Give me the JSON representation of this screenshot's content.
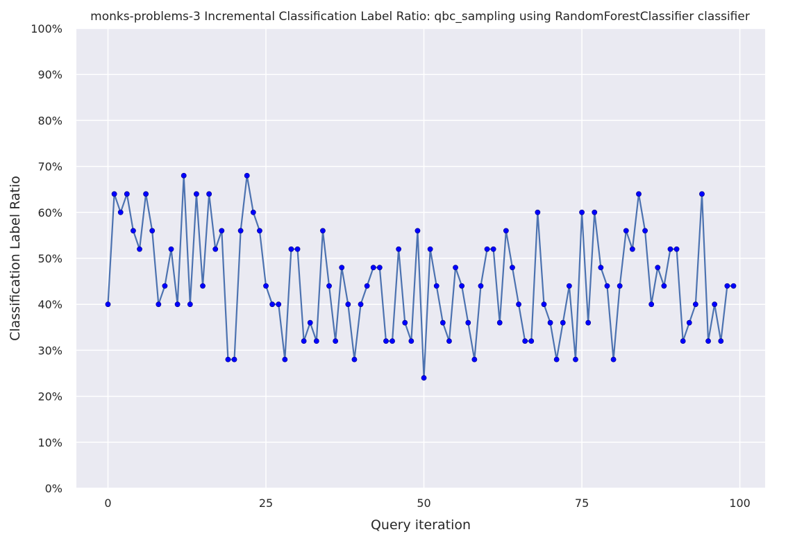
{
  "chart_data": {
    "type": "line",
    "title": "monks-problems-3 Incremental Classification Label Ratio: qbc_sampling using RandomForestClassifier classifier",
    "xlabel": "Query iteration",
    "ylabel": "Classification Label Ratio",
    "xlim": [
      -5,
      104
    ],
    "ylim": [
      0,
      1
    ],
    "xticks": [
      0,
      25,
      50,
      75,
      100
    ],
    "yticks": [
      0,
      0.1,
      0.2,
      0.3,
      0.4,
      0.5,
      0.6,
      0.7,
      0.8,
      0.9,
      1.0
    ],
    "ytick_labels": [
      "0%",
      "10%",
      "20%",
      "30%",
      "40%",
      "50%",
      "60%",
      "70%",
      "80%",
      "90%",
      "100%"
    ],
    "grid": true,
    "legend": "none",
    "colors": {
      "background": "#eaeaf2",
      "grid": "#ffffff",
      "line": "#4c72b0",
      "marker": "#0000ff"
    },
    "series": [
      {
        "x": [
          0,
          1,
          2,
          3,
          4,
          5,
          6,
          7,
          8,
          9,
          10,
          11,
          12,
          13,
          14,
          15,
          16,
          17,
          18,
          19,
          20,
          21,
          22,
          23,
          24,
          25,
          26,
          27,
          28,
          29,
          30,
          31,
          32,
          33,
          34,
          35,
          36,
          37,
          38,
          39,
          40,
          41,
          42,
          43,
          44,
          45,
          46,
          47,
          48,
          49,
          50,
          51,
          52,
          53,
          54,
          55,
          56,
          57,
          58,
          59,
          60,
          61,
          62,
          63,
          64,
          65,
          66,
          67,
          68,
          69,
          70,
          71,
          72,
          73,
          74,
          75,
          76,
          77,
          78,
          79,
          80,
          81,
          82,
          83,
          84,
          85,
          86,
          87,
          88,
          89,
          90,
          91,
          92,
          93,
          94,
          95,
          96,
          97,
          98,
          99
        ],
        "values": [
          0.4,
          0.64,
          0.6,
          0.64,
          0.56,
          0.52,
          0.64,
          0.56,
          0.4,
          0.44,
          0.52,
          0.4,
          0.68,
          0.4,
          0.64,
          0.44,
          0.64,
          0.52,
          0.56,
          0.28,
          0.28,
          0.56,
          0.68,
          0.6,
          0.56,
          0.44,
          0.4,
          0.4,
          0.28,
          0.52,
          0.52,
          0.32,
          0.36,
          0.32,
          0.56,
          0.44,
          0.32,
          0.48,
          0.4,
          0.28,
          0.4,
          0.44,
          0.48,
          0.48,
          0.32,
          0.32,
          0.52,
          0.36,
          0.32,
          0.56,
          0.24,
          0.52,
          0.44,
          0.36,
          0.32,
          0.48,
          0.44,
          0.36,
          0.28,
          0.44,
          0.52,
          0.52,
          0.36,
          0.56,
          0.48,
          0.4,
          0.32,
          0.32,
          0.6,
          0.4,
          0.36,
          0.28,
          0.36,
          0.44,
          0.28,
          0.6,
          0.36,
          0.6,
          0.48,
          0.44,
          0.28,
          0.44,
          0.56,
          0.52,
          0.64,
          0.56,
          0.4,
          0.48,
          0.44,
          0.52,
          0.52,
          0.32,
          0.36,
          0.4,
          0.64,
          0.32,
          0.4,
          0.32,
          0.44,
          0.44
        ]
      }
    ]
  }
}
